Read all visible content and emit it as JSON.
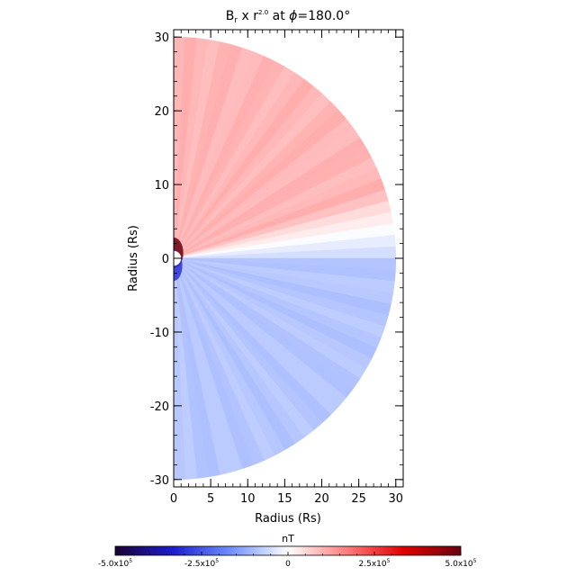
{
  "chart_data": {
    "type": "heatmap",
    "title": {
      "base": "B",
      "sub": "r",
      "mid": " x r",
      "sup": "2.0",
      "rest": " at ",
      "phi": "ϕ",
      "value": "=180.0°"
    },
    "xlabel": "Radius (Rs)",
    "ylabel": "Radius (Rs)",
    "xlim": [
      0,
      31
    ],
    "ylim": [
      -31,
      31
    ],
    "x_ticks": [
      0,
      5,
      10,
      15,
      20,
      25,
      30
    ],
    "y_ticks": [
      -30,
      -20,
      -10,
      0,
      10,
      20,
      30
    ],
    "x_tick_labels": [
      "0",
      "5",
      "10",
      "15",
      "20",
      "25",
      "30"
    ],
    "y_tick_labels": [
      "-30",
      "-20",
      "-10",
      "0",
      "10",
      "20",
      "30"
    ],
    "r_max": 30,
    "current_sheet_latitude_deg": 8,
    "colorbar": {
      "label": "nT",
      "min": -500000,
      "max": 500000,
      "ticks": [
        -500000,
        -250000,
        0,
        250000,
        500000
      ],
      "tick_labels": [
        {
          "mant": "-5.0x10",
          "exp": "5"
        },
        {
          "mant": "-2.5x10",
          "exp": "5"
        },
        {
          "mant": "0",
          "exp": ""
        },
        {
          "mant": "2.5x10",
          "exp": "5"
        },
        {
          "mant": "5.0x10",
          "exp": "5"
        }
      ],
      "colors": [
        "#1a0033",
        "#1c1ccc",
        "#6f8fff",
        "#ffffff",
        "#ff7f7f",
        "#e00000",
        "#6a0010"
      ]
    },
    "field_levels": {
      "north_hemisphere_nT": 95000,
      "south_hemisphere_nT": -85000,
      "near_sun_nT": 500000
    }
  }
}
